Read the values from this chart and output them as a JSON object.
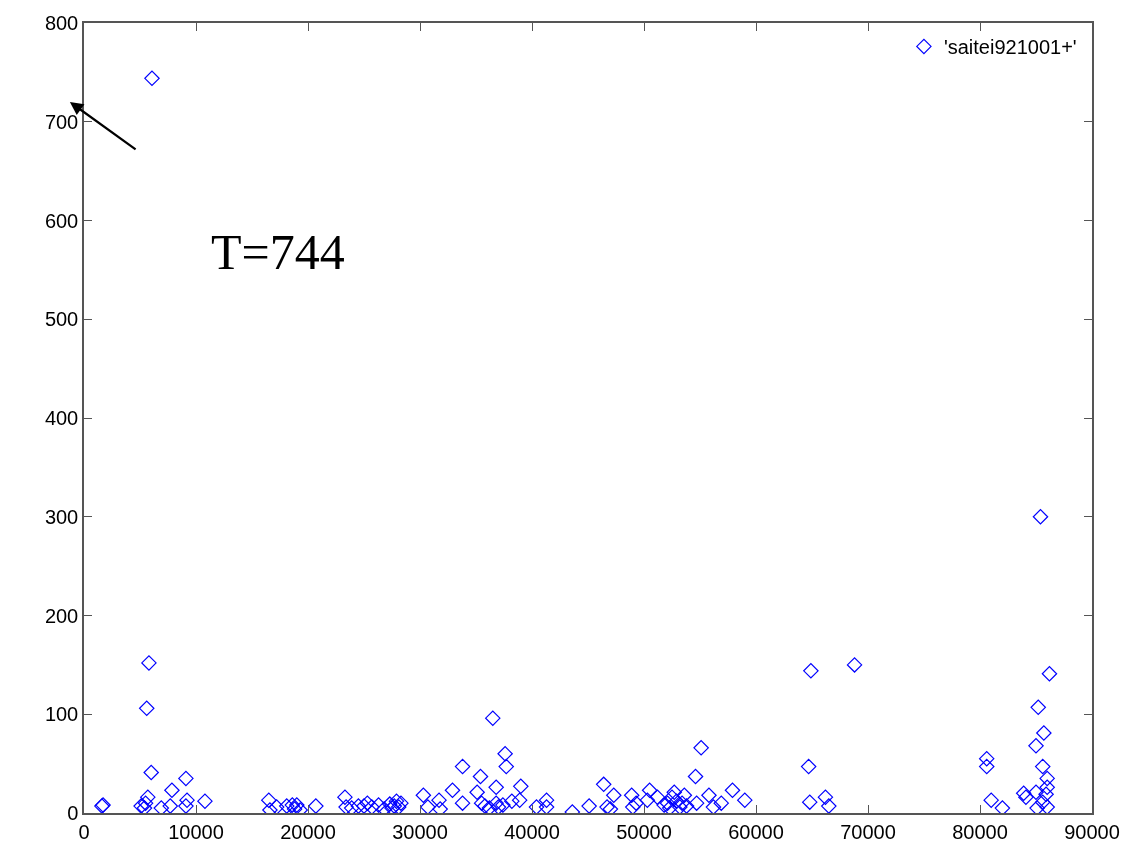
{
  "chart_data": {
    "type": "scatter",
    "marker": "diamond",
    "grid": false,
    "legend": "top right",
    "xlim": [
      0,
      90000
    ],
    "ylim": [
      0,
      800
    ],
    "xticks": [
      0,
      10000,
      20000,
      30000,
      40000,
      50000,
      60000,
      70000,
      80000,
      90000
    ],
    "yticks": [
      0,
      100,
      200,
      300,
      400,
      500,
      600,
      700,
      800
    ],
    "annotations": [
      "T=744"
    ],
    "series": [
      {
        "name": "'saitei921001+'",
        "color": "#0000ff",
        "x": [
          1600,
          1700,
          6070,
          5800,
          5600,
          6000,
          5700,
          5500,
          5400,
          5100,
          6900,
          7850,
          7700,
          9100,
          9100,
          9200,
          10800,
          16500,
          16600,
          17200,
          18100,
          18600,
          18800,
          19000,
          19300,
          20700,
          23300,
          23400,
          23900,
          24500,
          25000,
          25300,
          25700,
          26300,
          26800,
          27300,
          27500,
          27700,
          27900,
          28100,
          28300,
          30300,
          30700,
          31700,
          31800,
          32900,
          33800,
          33800,
          35100,
          35400,
          35500,
          35800,
          36200,
          36500,
          36800,
          36800,
          37000,
          37400,
          37600,
          37700,
          38200,
          38900,
          39000,
          40400,
          41300,
          41300,
          43600,
          45100,
          46400,
          46700,
          47000,
          47300,
          48900,
          49000,
          49300,
          50300,
          50500,
          51200,
          51800,
          52100,
          52300,
          52500,
          52700,
          52900,
          53200,
          53400,
          53600,
          53800,
          54600,
          54700,
          55100,
          55800,
          56200,
          56900,
          57900,
          59000,
          64700,
          64800,
          64900,
          66200,
          66500,
          68800,
          80600,
          80600,
          81000,
          82000,
          83900,
          84100,
          85000,
          85000,
          85100,
          85200,
          85400,
          85600,
          85600,
          85700,
          85900,
          86000,
          86000,
          86000,
          86200
        ],
        "values": [
          7,
          8,
          744,
          152,
          106,
          41,
          16,
          10,
          5,
          7,
          5,
          23,
          7,
          35,
          7,
          13,
          12,
          13,
          3,
          6,
          7,
          8,
          4,
          8,
          3,
          7,
          16,
          6,
          5,
          7,
          7,
          10,
          6,
          8,
          4,
          9,
          5,
          7,
          12,
          6,
          10,
          18,
          6,
          13,
          4,
          23,
          47,
          10,
          21,
          37,
          10,
          7,
          5,
          96,
          26,
          10,
          6,
          8,
          60,
          47,
          12,
          13,
          27,
          6,
          13,
          6,
          1,
          7,
          29,
          6,
          4,
          18,
          18,
          6,
          10,
          13,
          23,
          16,
          8,
          10,
          5,
          16,
          21,
          12,
          6,
          10,
          18,
          7,
          37,
          10,
          66,
          18,
          6,
          10,
          23,
          13,
          47,
          11,
          144,
          16,
          7,
          150,
          55,
          47,
          13,
          5,
          20,
          16,
          68,
          21,
          5,
          107,
          300,
          11,
          47,
          81,
          19,
          35,
          26,
          6,
          141
        ]
      }
    ]
  }
}
